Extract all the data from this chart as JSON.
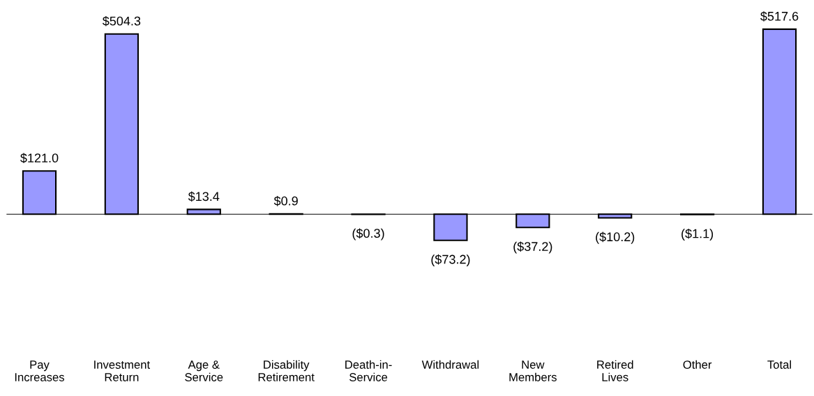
{
  "chart_data": {
    "type": "bar",
    "categories": [
      "Pay\nIncreases",
      "Investment\nReturn",
      "Age &\nService",
      "Disability\nRetirement",
      "Death-in-\nService",
      "Withdrawal",
      "New\nMembers",
      "Retired\nLives",
      "Other",
      "Total"
    ],
    "values": [
      121.0,
      504.3,
      13.4,
      0.9,
      -0.3,
      -73.2,
      -37.2,
      -10.2,
      -1.1,
      517.6
    ],
    "value_labels": [
      "$121.0",
      "$504.3",
      "$13.4",
      "$0.9",
      "($0.3)",
      "($73.2)",
      "($37.2)",
      "($10.2)",
      "($1.1)",
      "$517.6"
    ],
    "color": "#9999ff"
  }
}
